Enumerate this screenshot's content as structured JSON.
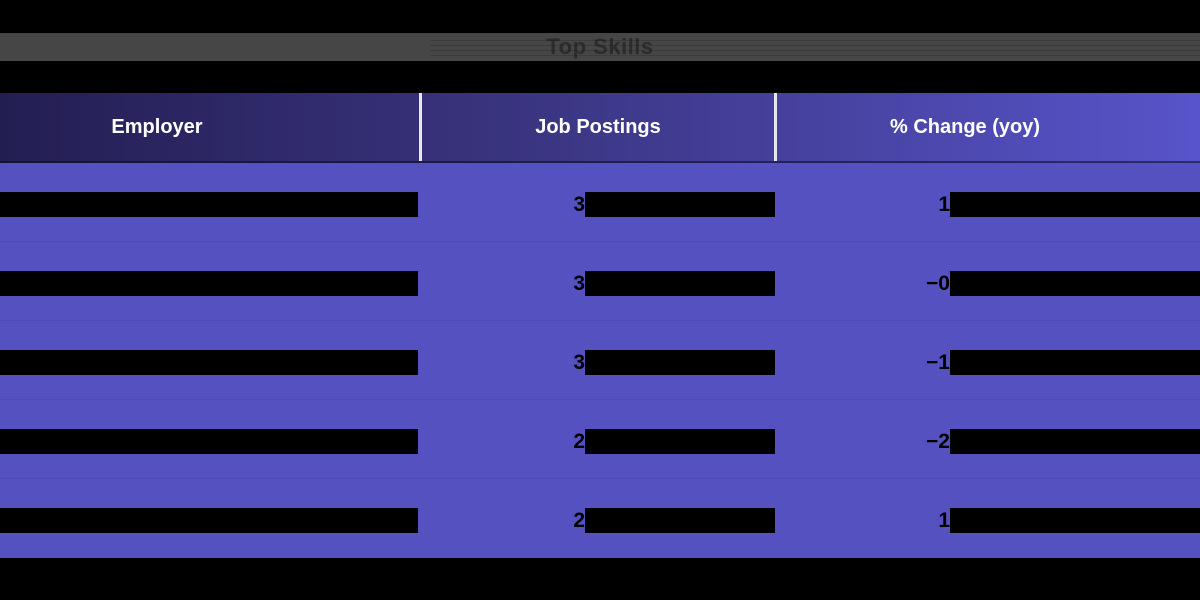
{
  "page": {
    "bg_color": "#000000"
  },
  "title_bar": {
    "text": "Top Skills",
    "bg_color": "#464646",
    "text_color": "#2c2c2c"
  },
  "table": {
    "header": {
      "columns": [
        {
          "label": "Employer"
        },
        {
          "label": "Job Postings"
        },
        {
          "label": "% Change (yoy)"
        }
      ],
      "text_color": "#ffffff",
      "gradient_left": "#231e52",
      "gradient_right": "#5854ca",
      "divider_color": "#e8e8f4"
    },
    "body": {
      "bg_color": "#5551c1",
      "redaction_color": "#000000",
      "rows": [
        {
          "employer_visible": "",
          "job_postings_visible": "3",
          "pct_change_visible": "1"
        },
        {
          "employer_visible": "",
          "job_postings_visible": "3",
          "pct_change_visible": "−0"
        },
        {
          "employer_visible": "",
          "job_postings_visible": "3",
          "pct_change_visible": "−1"
        },
        {
          "employer_visible": "",
          "job_postings_visible": "2",
          "pct_change_visible": "−2"
        },
        {
          "employer_visible": "",
          "job_postings_visible": "2",
          "pct_change_visible": "1"
        }
      ]
    }
  },
  "chart_data": {
    "type": "table",
    "title": "Top Skills",
    "columns": [
      "Employer",
      "Job Postings",
      "% Change (yoy)"
    ],
    "rows": [
      [
        "",
        "3",
        "1"
      ],
      [
        "",
        "3",
        "−0"
      ],
      [
        "",
        "3",
        "−1"
      ],
      [
        "",
        "2",
        "−2"
      ],
      [
        "",
        "2",
        "1"
      ]
    ],
    "redacted": true,
    "legend_position": "none",
    "grid": false
  }
}
